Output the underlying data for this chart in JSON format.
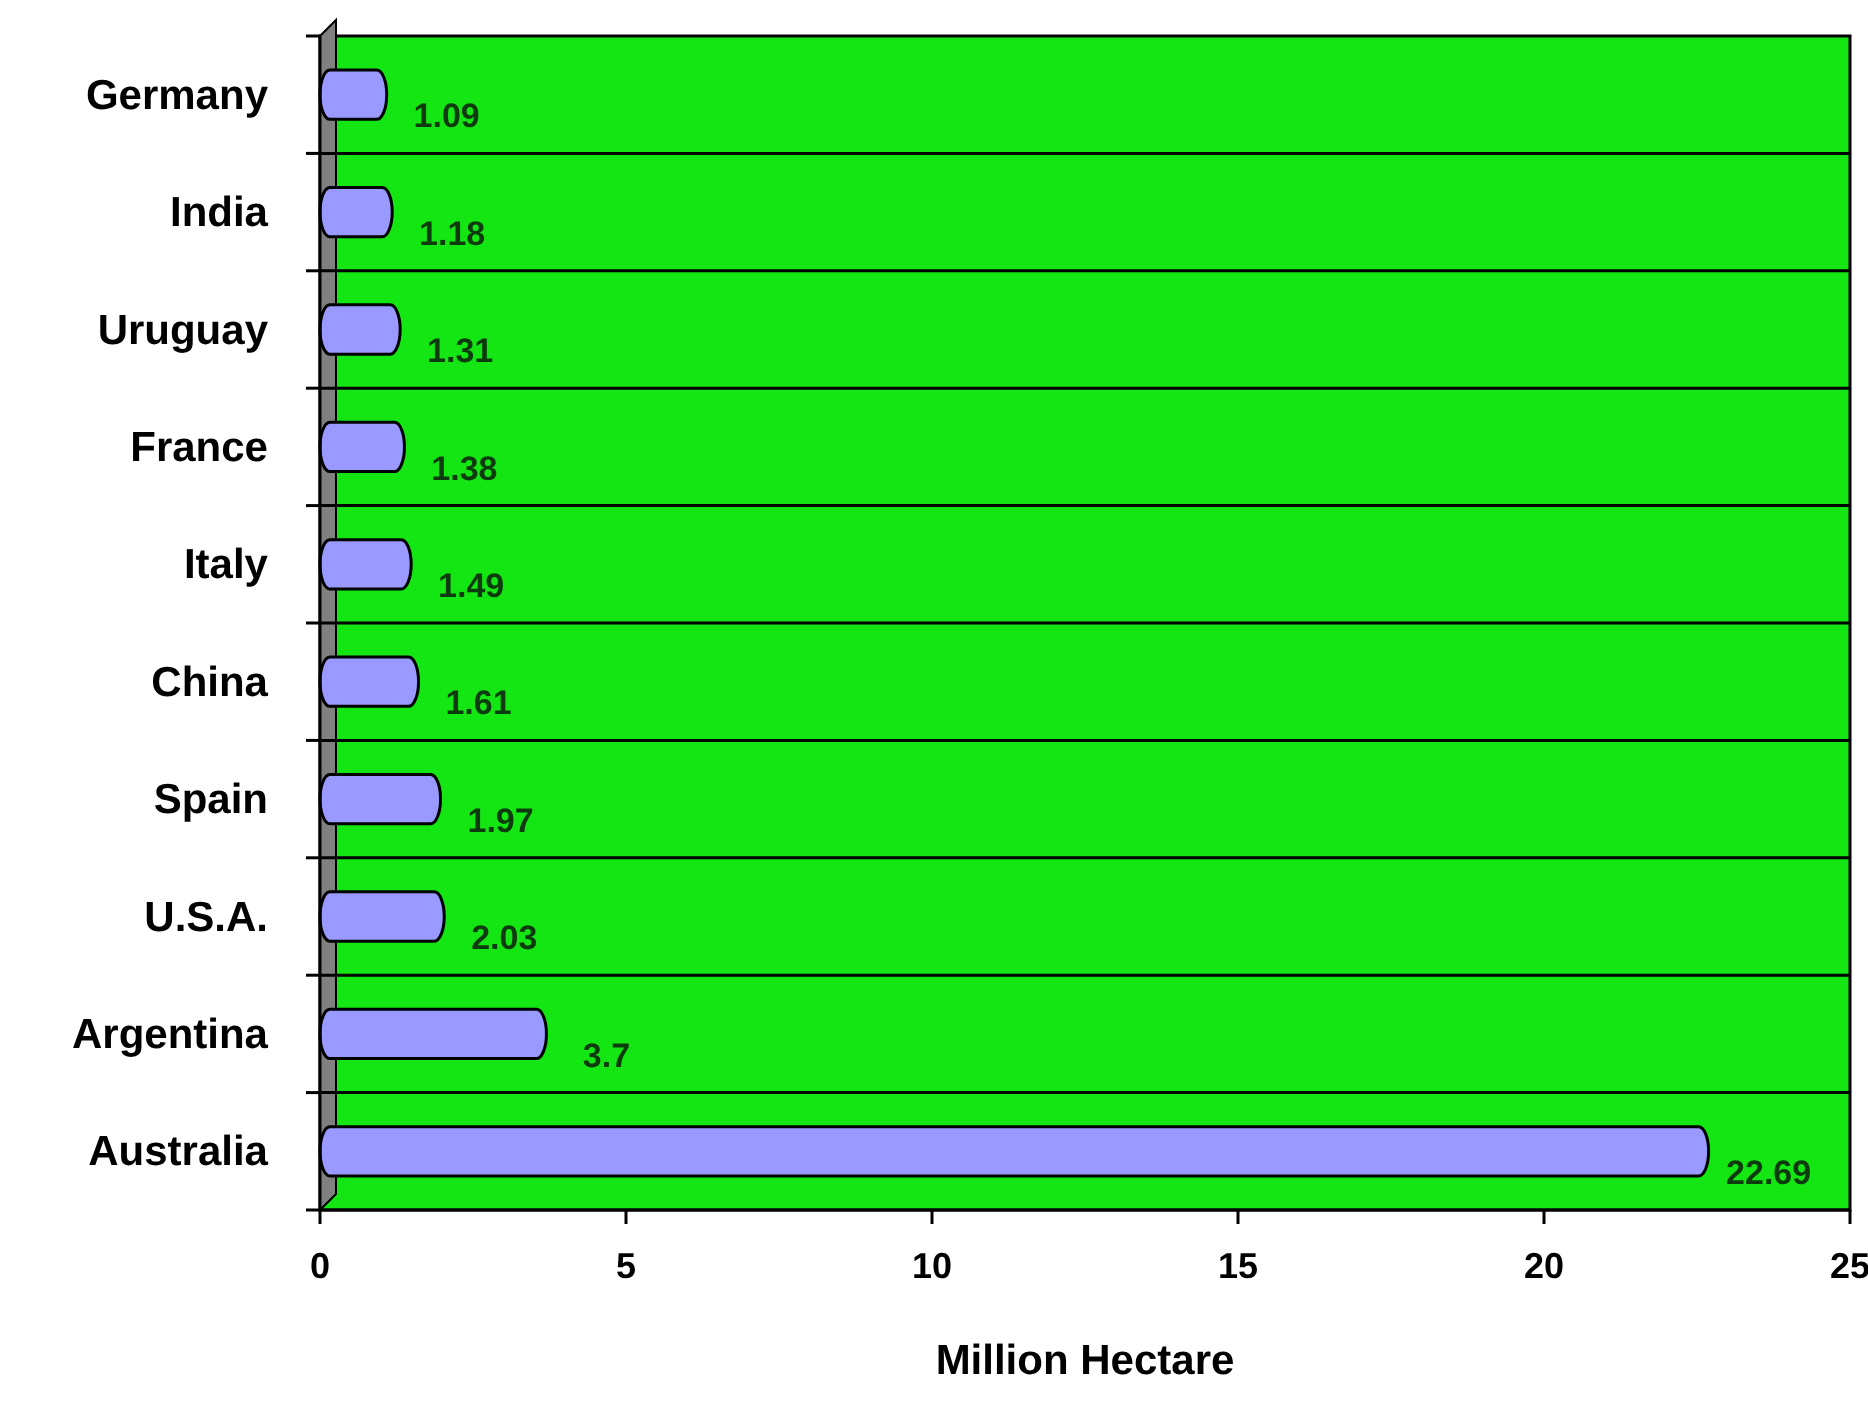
{
  "chart_data": {
    "type": "bar",
    "orientation": "horizontal",
    "xlabel": "Million Hectare",
    "categories": [
      "Germany",
      "India",
      "Uruguay",
      "France",
      "Italy",
      "China",
      "Spain",
      "U.S.A.",
      "Argentina",
      "Australia"
    ],
    "values": [
      1.09,
      1.18,
      1.31,
      1.38,
      1.49,
      1.61,
      1.97,
      2.03,
      3.7,
      22.69
    ],
    "color": "#9999ff",
    "xlim": [
      0,
      25
    ],
    "xticks": [
      0,
      5,
      10,
      15,
      20,
      25
    ],
    "grid": "y",
    "data_labels": true
  }
}
